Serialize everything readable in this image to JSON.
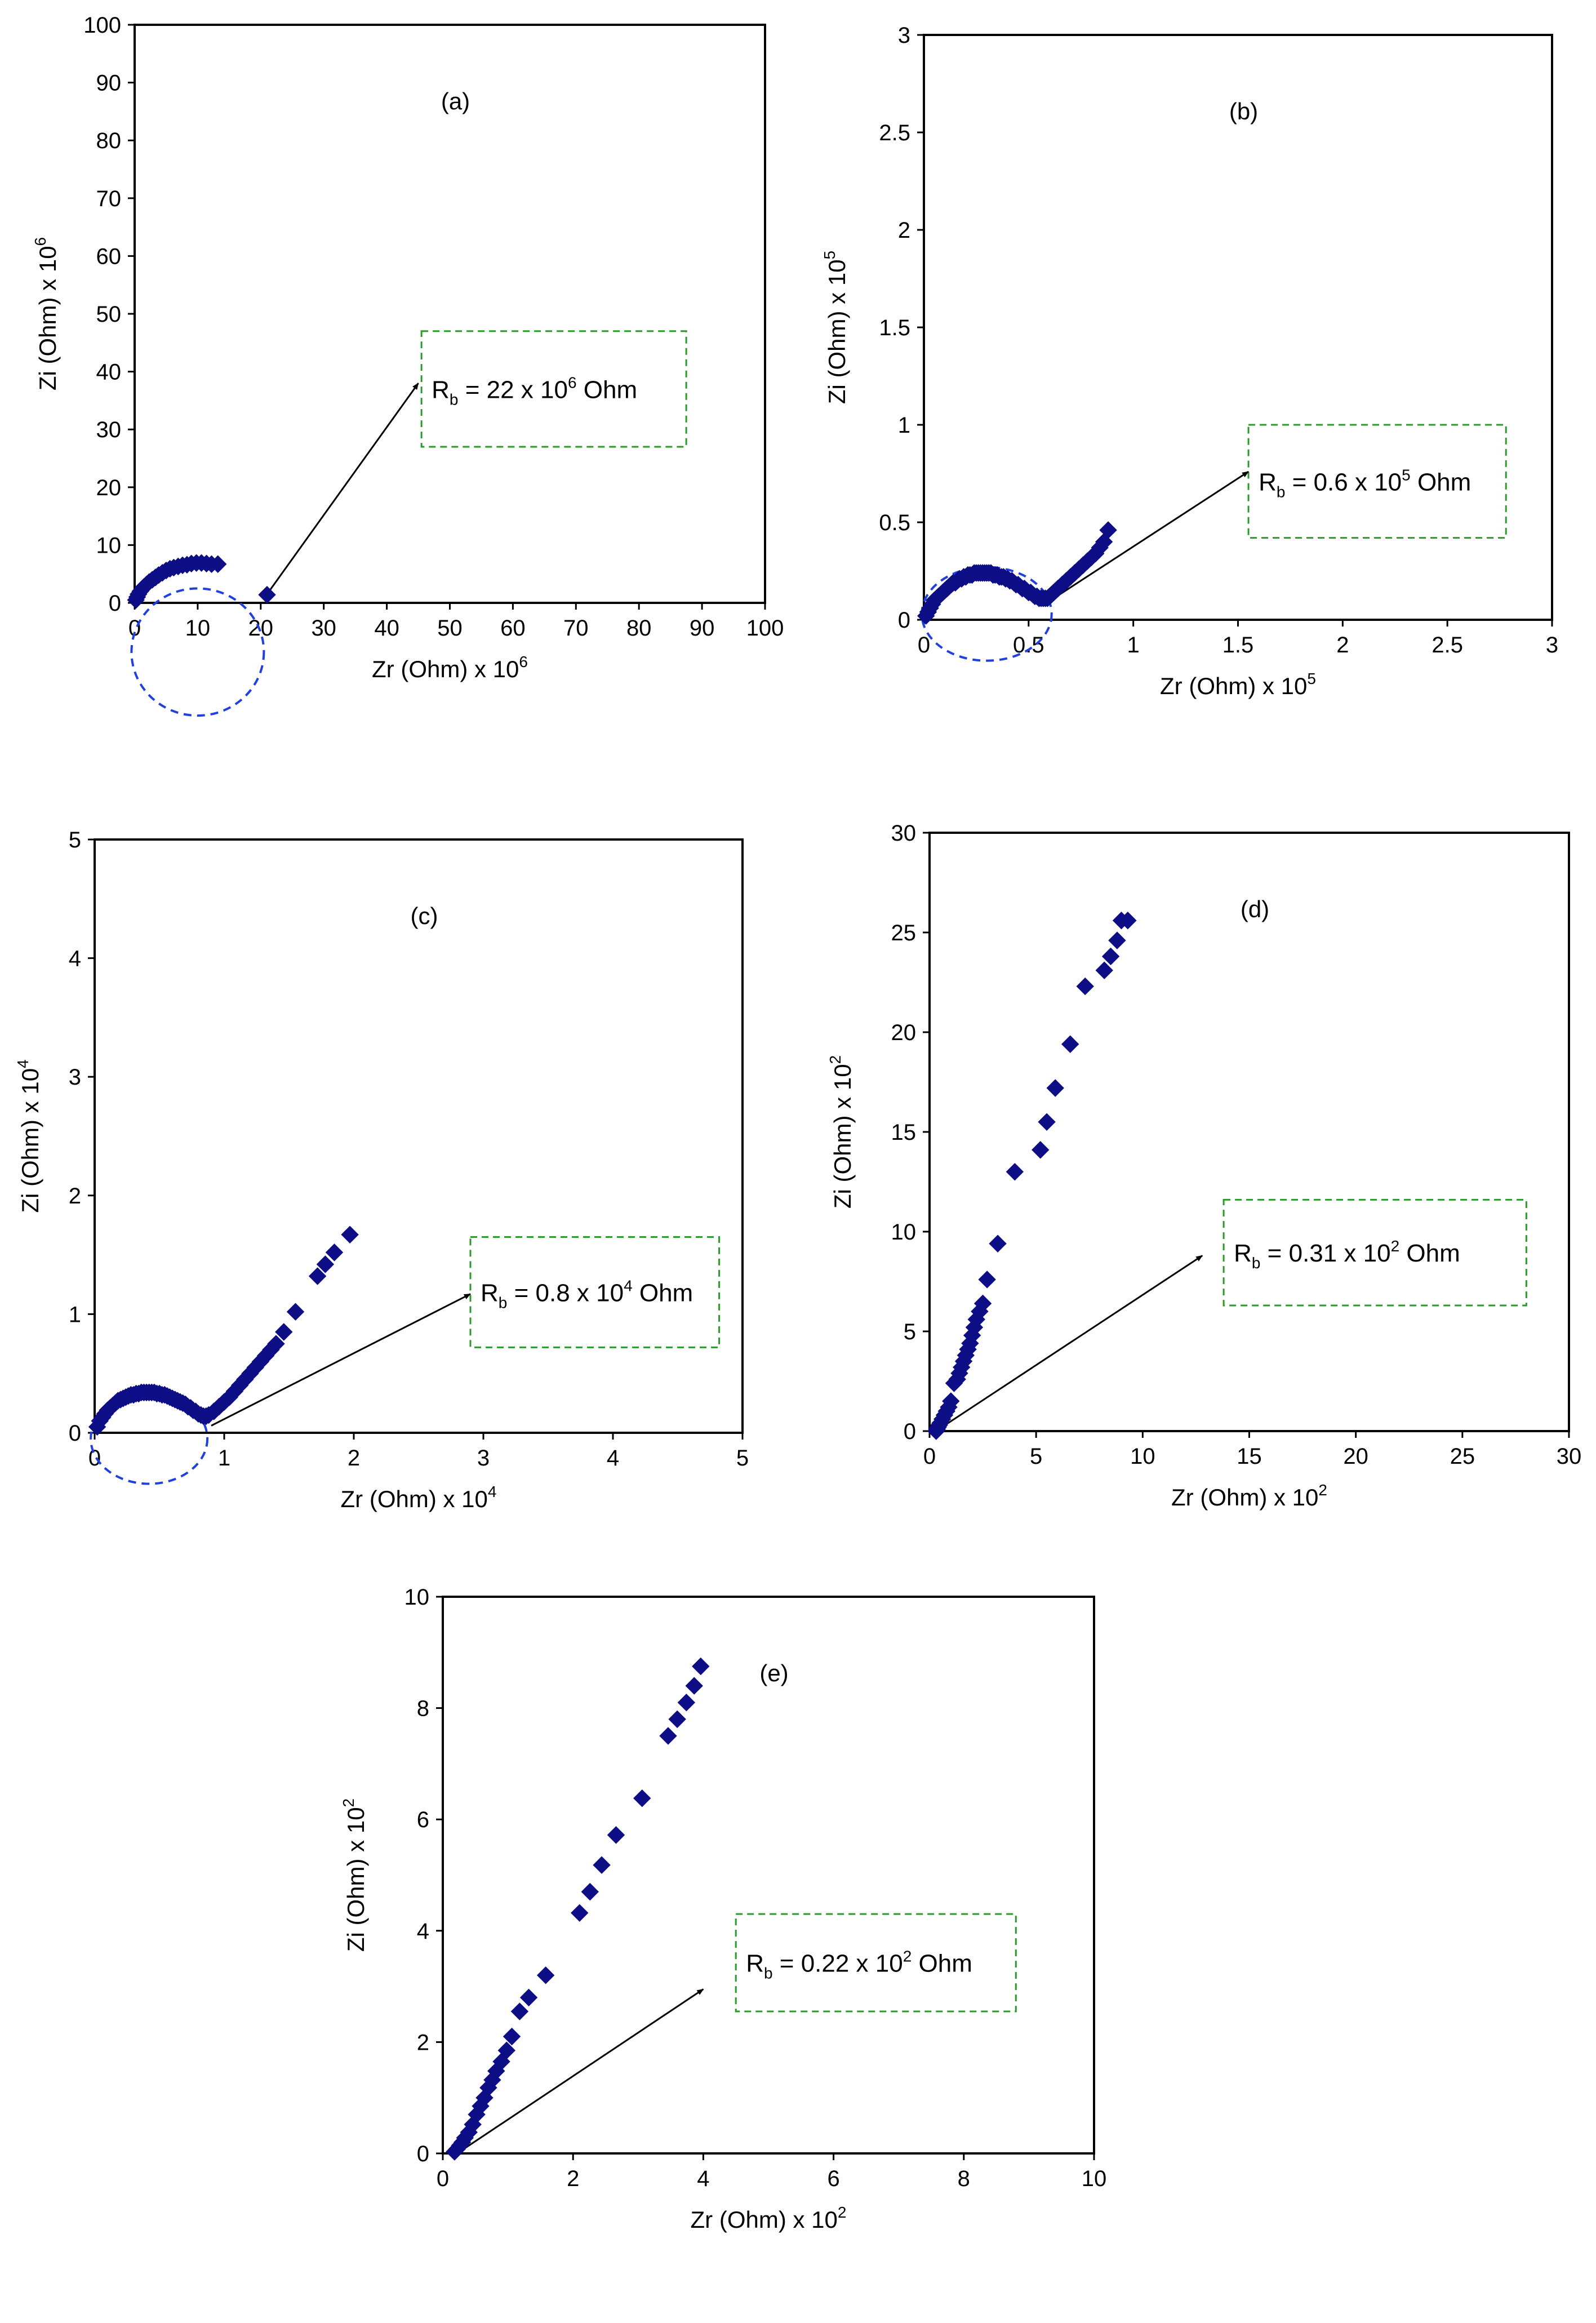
{
  "chart_data": [
    {
      "id": "a",
      "type": "scatter",
      "panel_label": "(a)",
      "xlabel": "Zr (Ohm) x 10",
      "xlabel_exp": "6",
      "ylabel": "Zi (Ohm) x 10",
      "ylabel_exp": "6",
      "xlim": [
        0,
        100
      ],
      "ylim": [
        0,
        100
      ],
      "xticks": [
        0,
        10,
        20,
        30,
        40,
        50,
        60,
        70,
        80,
        90,
        100
      ],
      "yticks": [
        0,
        10,
        20,
        30,
        40,
        50,
        60,
        70,
        80,
        90,
        100
      ],
      "xtick_labels": [
        "0",
        "10",
        "20",
        "30",
        "40",
        "50",
        "60",
        "70",
        "80",
        "90",
        "100"
      ],
      "ytick_labels": [
        "0",
        "10",
        "20",
        "30",
        "40",
        "50",
        "60",
        "70",
        "80",
        "90",
        "100"
      ],
      "annotation": {
        "prefix": "R",
        "sub": "b",
        "mid": " = 22 x 10",
        "exp": "6",
        "suffix": " Ohm"
      },
      "arrow": {
        "from": [
          21,
          1.5
        ],
        "to": [
          45,
          38
        ]
      },
      "box": {
        "x0": 45.5,
        "x1": 87.5,
        "y0": 27,
        "y1": 47
      },
      "circle": {
        "cx": 10,
        "cy": -8.5,
        "rx": 10.5,
        "ry": 11
      },
      "x": [
        0.2,
        0.4,
        0.6,
        0.9,
        1.2,
        1.5,
        1.9,
        2.3,
        2.8,
        3.3,
        3.8,
        4.4,
        5.0,
        5.6,
        6.2,
        6.9,
        7.6,
        8.3,
        9.0,
        9.8,
        10.6,
        11.4,
        12.2,
        13.2,
        21.0
      ],
      "y": [
        0.5,
        1.0,
        1.5,
        2.0,
        2.4,
        2.8,
        3.2,
        3.6,
        4.0,
        4.4,
        4.8,
        5.2,
        5.6,
        5.9,
        6.1,
        6.3,
        6.5,
        6.6,
        6.8,
        6.9,
        6.9,
        6.8,
        6.7,
        6.7,
        1.4
      ]
    },
    {
      "id": "b",
      "type": "scatter",
      "panel_label": "(b)",
      "xlabel": "Zr (Ohm) x 10",
      "xlabel_exp": "5",
      "ylabel": "Zi (Ohm) x 10",
      "ylabel_exp": "5",
      "xlim": [
        0,
        3
      ],
      "ylim": [
        0,
        3
      ],
      "xticks": [
        0,
        0.5,
        1,
        1.5,
        2,
        2.5,
        3
      ],
      "yticks": [
        0,
        0.5,
        1,
        1.5,
        2,
        2.5,
        3
      ],
      "xtick_labels": [
        "0",
        "0.5",
        "1",
        "1.5",
        "2",
        "2.5",
        "3"
      ],
      "ytick_labels": [
        "0",
        "0.5",
        "1",
        "1.5",
        "2",
        "2.5",
        "3"
      ],
      "annotation": {
        "prefix": "R",
        "sub": "b",
        "mid": " = 0.6 x 10",
        "exp": "5",
        "suffix": " Ohm"
      },
      "arrow": {
        "from": [
          0.62,
          0.11
        ],
        "to": [
          1.55,
          0.76
        ]
      },
      "box": {
        "x0": 1.55,
        "x1": 2.78,
        "y0": 0.42,
        "y1": 1.0
      },
      "circle": {
        "cx": 0.3,
        "cy": 0.03,
        "rx": 0.31,
        "ry": 0.24
      },
      "x": [
        0.01,
        0.02,
        0.03,
        0.04,
        0.05,
        0.06,
        0.07,
        0.08,
        0.09,
        0.1,
        0.11,
        0.12,
        0.13,
        0.14,
        0.15,
        0.16,
        0.17,
        0.18,
        0.19,
        0.2,
        0.21,
        0.22,
        0.23,
        0.24,
        0.25,
        0.26,
        0.27,
        0.28,
        0.29,
        0.3,
        0.31,
        0.32,
        0.33,
        0.34,
        0.35,
        0.36,
        0.37,
        0.38,
        0.39,
        0.4,
        0.41,
        0.42,
        0.43,
        0.44,
        0.45,
        0.46,
        0.47,
        0.48,
        0.49,
        0.5,
        0.51,
        0.52,
        0.53,
        0.54,
        0.55,
        0.56,
        0.57,
        0.58,
        0.59,
        0.6,
        0.61,
        0.62,
        0.63,
        0.64,
        0.66,
        0.68,
        0.7,
        0.72,
        0.74,
        0.76,
        0.78,
        0.8,
        0.82,
        0.84,
        0.86,
        0.88
      ],
      "y": [
        0.02,
        0.04,
        0.06,
        0.08,
        0.1,
        0.11,
        0.12,
        0.13,
        0.14,
        0.15,
        0.16,
        0.17,
        0.18,
        0.19,
        0.19,
        0.2,
        0.21,
        0.21,
        0.22,
        0.22,
        0.23,
        0.23,
        0.23,
        0.24,
        0.24,
        0.24,
        0.24,
        0.24,
        0.24,
        0.24,
        0.24,
        0.24,
        0.23,
        0.23,
        0.23,
        0.22,
        0.22,
        0.22,
        0.21,
        0.21,
        0.2,
        0.2,
        0.19,
        0.18,
        0.18,
        0.17,
        0.16,
        0.16,
        0.15,
        0.14,
        0.14,
        0.13,
        0.12,
        0.12,
        0.11,
        0.11,
        0.11,
        0.11,
        0.11,
        0.12,
        0.13,
        0.14,
        0.15,
        0.16,
        0.18,
        0.2,
        0.22,
        0.24,
        0.26,
        0.28,
        0.3,
        0.32,
        0.34,
        0.37,
        0.4,
        0.46
      ]
    },
    {
      "id": "c",
      "type": "scatter",
      "panel_label": "(c)",
      "xlabel": "Zr (Ohm) x 10",
      "xlabel_exp": "4",
      "ylabel": "Zi (Ohm) x 10",
      "ylabel_exp": "4",
      "xlim": [
        0,
        5
      ],
      "ylim": [
        0,
        5
      ],
      "xticks": [
        0,
        1,
        2,
        3,
        4,
        5
      ],
      "yticks": [
        0,
        1,
        2,
        3,
        4,
        5
      ],
      "xtick_labels": [
        "0",
        "1",
        "2",
        "3",
        "4",
        "5"
      ],
      "ytick_labels": [
        "0",
        "1",
        "2",
        "3",
        "4",
        "5"
      ],
      "annotation": {
        "prefix": "R",
        "sub": "b",
        "mid": " = 0.8 x 10",
        "exp": "4",
        "suffix": " Ohm"
      },
      "arrow": {
        "from": [
          0.9,
          0.06
        ],
        "to": [
          2.9,
          1.17
        ]
      },
      "box": {
        "x0": 2.9,
        "x1": 4.82,
        "y0": 0.72,
        "y1": 1.65
      },
      "circle": {
        "cx": 0.42,
        "cy": -0.05,
        "rx": 0.45,
        "ry": 0.38
      },
      "x": [
        0.02,
        0.04,
        0.06,
        0.08,
        0.1,
        0.12,
        0.14,
        0.16,
        0.18,
        0.2,
        0.22,
        0.24,
        0.26,
        0.28,
        0.3,
        0.32,
        0.34,
        0.36,
        0.38,
        0.4,
        0.42,
        0.44,
        0.46,
        0.48,
        0.5,
        0.52,
        0.54,
        0.56,
        0.58,
        0.6,
        0.62,
        0.64,
        0.66,
        0.68,
        0.7,
        0.72,
        0.74,
        0.76,
        0.78,
        0.8,
        0.82,
        0.84,
        0.86,
        0.88,
        0.92,
        0.96,
        1.0,
        1.04,
        1.08,
        1.12,
        1.16,
        1.2,
        1.24,
        1.28,
        1.32,
        1.36,
        1.4,
        1.46,
        1.55,
        1.72,
        1.78,
        1.85,
        1.97
      ],
      "y": [
        0.05,
        0.1,
        0.13,
        0.16,
        0.19,
        0.21,
        0.23,
        0.25,
        0.27,
        0.28,
        0.29,
        0.3,
        0.31,
        0.32,
        0.32,
        0.33,
        0.33,
        0.34,
        0.34,
        0.34,
        0.34,
        0.34,
        0.34,
        0.33,
        0.33,
        0.32,
        0.32,
        0.31,
        0.3,
        0.29,
        0.28,
        0.27,
        0.26,
        0.25,
        0.24,
        0.22,
        0.21,
        0.19,
        0.18,
        0.16,
        0.15,
        0.14,
        0.14,
        0.15,
        0.18,
        0.22,
        0.26,
        0.3,
        0.35,
        0.4,
        0.45,
        0.5,
        0.55,
        0.6,
        0.65,
        0.7,
        0.75,
        0.85,
        1.02,
        1.32,
        1.42,
        1.52,
        1.67
      ]
    },
    {
      "id": "d",
      "type": "scatter",
      "panel_label": "(d)",
      "xlabel": "Zr (Ohm) x 10",
      "xlabel_exp": "2",
      "ylabel": "Zi (Ohm) x 10",
      "ylabel_exp": "2",
      "xlim": [
        0,
        30
      ],
      "ylim": [
        0,
        30
      ],
      "xticks": [
        0,
        5,
        10,
        15,
        20,
        25,
        30
      ],
      "yticks": [
        0,
        5,
        10,
        15,
        20,
        25,
        30
      ],
      "xtick_labels": [
        "0",
        "5",
        "10",
        "15",
        "20",
        "25",
        "30"
      ],
      "ytick_labels": [
        "0",
        "5",
        "10",
        "15",
        "20",
        "25",
        "30"
      ],
      "annotation": {
        "prefix": "R",
        "sub": "b",
        "mid": " = 0.31 x 10",
        "exp": "2",
        "suffix": " Ohm"
      },
      "arrow": {
        "from": [
          0.3,
          0
        ],
        "to": [
          12.8,
          8.8
        ]
      },
      "box": {
        "x0": 13.8,
        "x1": 28.0,
        "y0": 6.3,
        "y1": 11.6
      },
      "x": [
        0.31,
        0.35,
        0.4,
        0.45,
        0.5,
        0.6,
        0.7,
        0.8,
        0.9,
        1.0,
        1.15,
        1.3,
        1.4,
        1.5,
        1.6,
        1.7,
        1.8,
        1.9,
        2.0,
        2.1,
        2.2,
        2.35,
        2.5,
        2.7,
        3.2,
        4.0,
        5.2,
        5.5,
        5.9,
        6.6,
        7.3,
        8.2,
        8.5,
        8.8,
        9.0,
        9.3
      ],
      "y": [
        0.0,
        0.1,
        0.2,
        0.3,
        0.4,
        0.6,
        0.8,
        1.0,
        1.2,
        1.5,
        2.4,
        2.6,
        2.9,
        3.2,
        3.5,
        3.8,
        4.1,
        4.4,
        4.8,
        5.2,
        5.6,
        6.0,
        6.4,
        7.6,
        9.4,
        13.0,
        14.1,
        15.5,
        17.2,
        19.4,
        22.3,
        23.1,
        23.8,
        24.6,
        25.6,
        25.6
      ]
    },
    {
      "id": "e",
      "type": "scatter",
      "panel_label": "(e)",
      "xlabel": "Zr (Ohm) x 10",
      "xlabel_exp": "2",
      "ylabel": "Zi (Ohm) x 10",
      "ylabel_exp": "2",
      "xlim": [
        0,
        10
      ],
      "ylim": [
        0,
        10
      ],
      "xticks": [
        0,
        2,
        4,
        6,
        8,
        10
      ],
      "yticks": [
        0,
        2,
        4,
        6,
        8,
        10
      ],
      "xtick_labels": [
        "0",
        "2",
        "4",
        "6",
        "8",
        "10"
      ],
      "ytick_labels": [
        "0",
        "2",
        "4",
        "6",
        "8",
        "10"
      ],
      "annotation": {
        "prefix": "R",
        "sub": "b",
        "mid": " = 0.22 x 10",
        "exp": "2",
        "suffix": " Ohm"
      },
      "arrow": {
        "from": [
          0.22,
          0
        ],
        "to": [
          4.0,
          2.95
        ]
      },
      "box": {
        "x0": 4.5,
        "x1": 8.8,
        "y0": 2.55,
        "y1": 4.3
      },
      "x": [
        0.18,
        0.22,
        0.26,
        0.3,
        0.34,
        0.4,
        0.46,
        0.52,
        0.58,
        0.64,
        0.7,
        0.76,
        0.82,
        0.9,
        0.98,
        1.06,
        1.18,
        1.32,
        1.58,
        2.1,
        2.26,
        2.44,
        2.66,
        3.06,
        3.46,
        3.6,
        3.74,
        3.86,
        3.96
      ],
      "y": [
        0.03,
        0.08,
        0.14,
        0.2,
        0.28,
        0.38,
        0.52,
        0.7,
        0.85,
        1.0,
        1.18,
        1.32,
        1.48,
        1.65,
        1.85,
        2.1,
        2.55,
        2.8,
        3.2,
        4.32,
        4.7,
        5.18,
        5.72,
        6.38,
        7.5,
        7.8,
        8.1,
        8.4,
        8.75
      ]
    }
  ]
}
